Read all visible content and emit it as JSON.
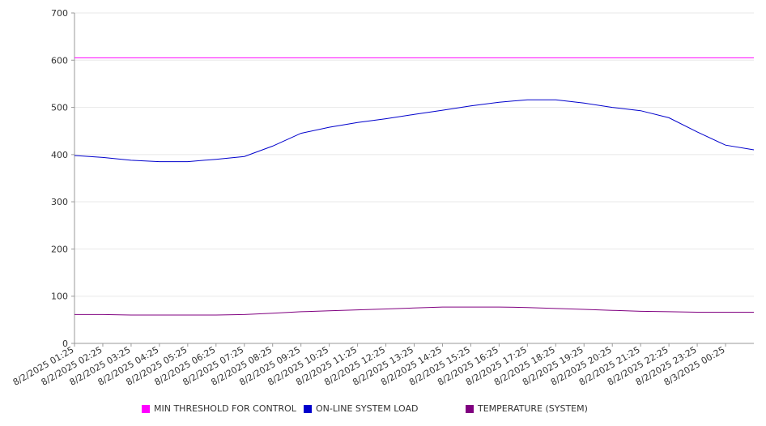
{
  "chart_data": {
    "type": "line",
    "ylim": [
      0,
      700
    ],
    "y_ticks": [
      0,
      100,
      200,
      300,
      400,
      500,
      600,
      700
    ],
    "x_ticks": [
      "8/2/2025 01:25",
      "8/2/2025 02:25",
      "8/2/2025 03:25",
      "8/2/2025 04:25",
      "8/2/2025 05:25",
      "8/2/2025 06:25",
      "8/2/2025 07:25",
      "8/2/2025 08:25",
      "8/2/2025 09:25",
      "8/2/2025 10:25",
      "8/2/2025 11:25",
      "8/2/2025 12:25",
      "8/2/2025 13:25",
      "8/2/2025 14:25",
      "8/2/2025 15:25",
      "8/2/2025 16:25",
      "8/2/2025 17:25",
      "8/2/2025 18:25",
      "8/2/2025 19:25",
      "8/2/2025 20:25",
      "8/2/2025 21:25",
      "8/2/2025 22:25",
      "8/2/2025 23:25",
      "8/3/2025 00:25"
    ],
    "x_range": [
      "8/2/2025 01:25",
      "8/3/2025 01:25"
    ],
    "grid": true,
    "legend_position": "bottom",
    "series": [
      {
        "name": "MIN THRESHOLD FOR CONTROL",
        "color": "#ff00ff",
        "x": [
          "8/2/2025 01:25",
          "8/3/2025 01:25"
        ],
        "values": [
          605,
          605
        ]
      },
      {
        "name": "ON-LINE SYSTEM LOAD",
        "color": "#0000cc",
        "x": [
          "8/2/2025 01:25",
          "8/2/2025 02:25",
          "8/2/2025 03:25",
          "8/2/2025 04:25",
          "8/2/2025 05:25",
          "8/2/2025 06:25",
          "8/2/2025 07:25",
          "8/2/2025 08:25",
          "8/2/2025 09:25",
          "8/2/2025 10:25",
          "8/2/2025 11:25",
          "8/2/2025 12:25",
          "8/2/2025 13:25",
          "8/2/2025 14:25",
          "8/2/2025 15:25",
          "8/2/2025 16:25",
          "8/2/2025 17:25",
          "8/2/2025 18:25",
          "8/2/2025 19:25",
          "8/2/2025 20:25",
          "8/2/2025 21:25",
          "8/2/2025 22:25",
          "8/2/2025 23:25",
          "8/3/2025 00:25",
          "8/3/2025 01:25"
        ],
        "values": [
          398,
          394,
          388,
          385,
          385,
          390,
          396,
          418,
          445,
          458,
          468,
          476,
          485,
          494,
          503,
          511,
          516,
          516,
          509,
          500,
          493,
          478,
          448,
          420,
          410
        ]
      },
      {
        "name": "TEMPERATURE (SYSTEM)",
        "color": "#800080",
        "x": [
          "8/2/2025 01:25",
          "8/2/2025 02:25",
          "8/2/2025 03:25",
          "8/2/2025 04:25",
          "8/2/2025 05:25",
          "8/2/2025 06:25",
          "8/2/2025 07:25",
          "8/2/2025 08:25",
          "8/2/2025 09:25",
          "8/2/2025 10:25",
          "8/2/2025 11:25",
          "8/2/2025 12:25",
          "8/2/2025 13:25",
          "8/2/2025 14:25",
          "8/2/2025 15:25",
          "8/2/2025 16:25",
          "8/2/2025 17:25",
          "8/2/2025 18:25",
          "8/2/2025 19:25",
          "8/2/2025 20:25",
          "8/2/2025 21:25",
          "8/2/2025 22:25",
          "8/2/2025 23:25",
          "8/3/2025 00:25",
          "8/3/2025 01:25"
        ],
        "values": [
          61,
          61,
          60,
          60,
          60,
          60,
          61,
          64,
          67,
          69,
          71,
          73,
          75,
          77,
          77,
          77,
          76,
          74,
          72,
          70,
          68,
          67,
          66,
          66,
          66
        ]
      }
    ]
  }
}
